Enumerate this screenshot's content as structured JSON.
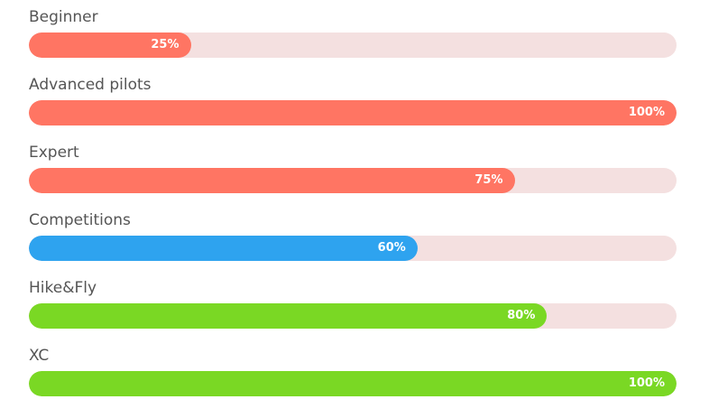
{
  "skills": [
    {
      "label": "Beginner",
      "percent_label": "25%",
      "level": 25,
      "color": "#ff7563"
    },
    {
      "label": "Advanced pilots",
      "percent_label": "100%",
      "level": 100,
      "color": "#ff7563"
    },
    {
      "label": "Expert",
      "percent_label": "75%",
      "level": 75,
      "color": "#ff7563"
    },
    {
      "label": "Competitions",
      "percent_label": "60%",
      "level": 60,
      "color": "#2ea3ef"
    },
    {
      "label": "Hike&Fly",
      "percent_label": "80%",
      "level": 80,
      "color": "#7ad824"
    },
    {
      "label": "XC",
      "percent_label": "100%",
      "level": 100,
      "color": "#7ad824"
    }
  ],
  "track_color": "#f4e0e0"
}
